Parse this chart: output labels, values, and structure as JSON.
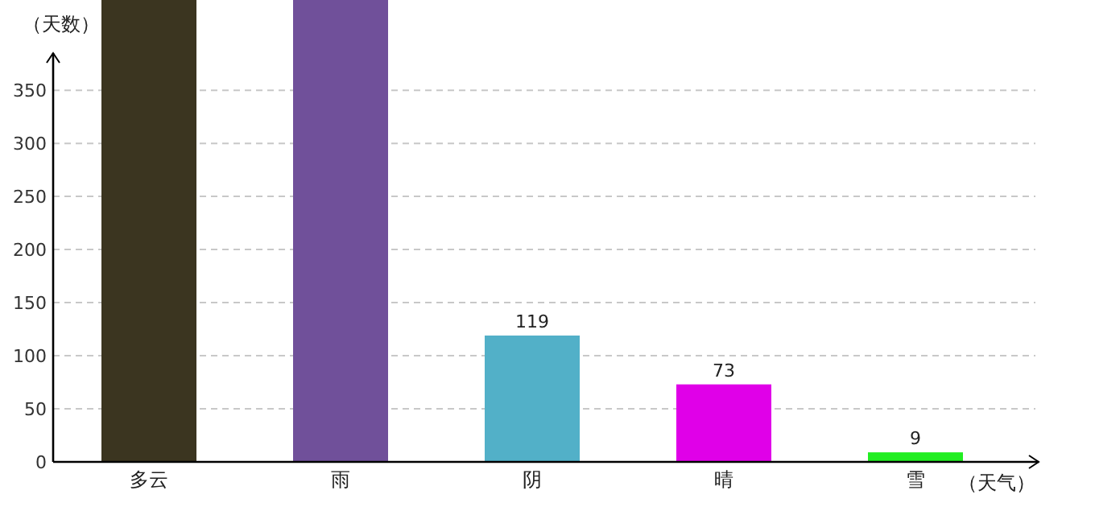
{
  "chart_data": {
    "type": "bar",
    "ylabel": "（天数）",
    "xlabel": "（天气）",
    "categories": [
      "多云",
      "雨",
      "阴",
      "晴",
      "雪"
    ],
    "values": [
      435,
      435,
      119,
      73,
      9
    ],
    "colors": [
      "#3b3520",
      "#70509a",
      "#52b0c8",
      "#e000e8",
      "#22ee22"
    ],
    "value_labels": [
      null,
      null,
      "119",
      "73",
      "9"
    ],
    "ylim": [
      0,
      435
    ],
    "yticks": [
      0,
      50,
      100,
      150,
      200,
      250,
      300,
      350
    ],
    "grid": "y"
  }
}
